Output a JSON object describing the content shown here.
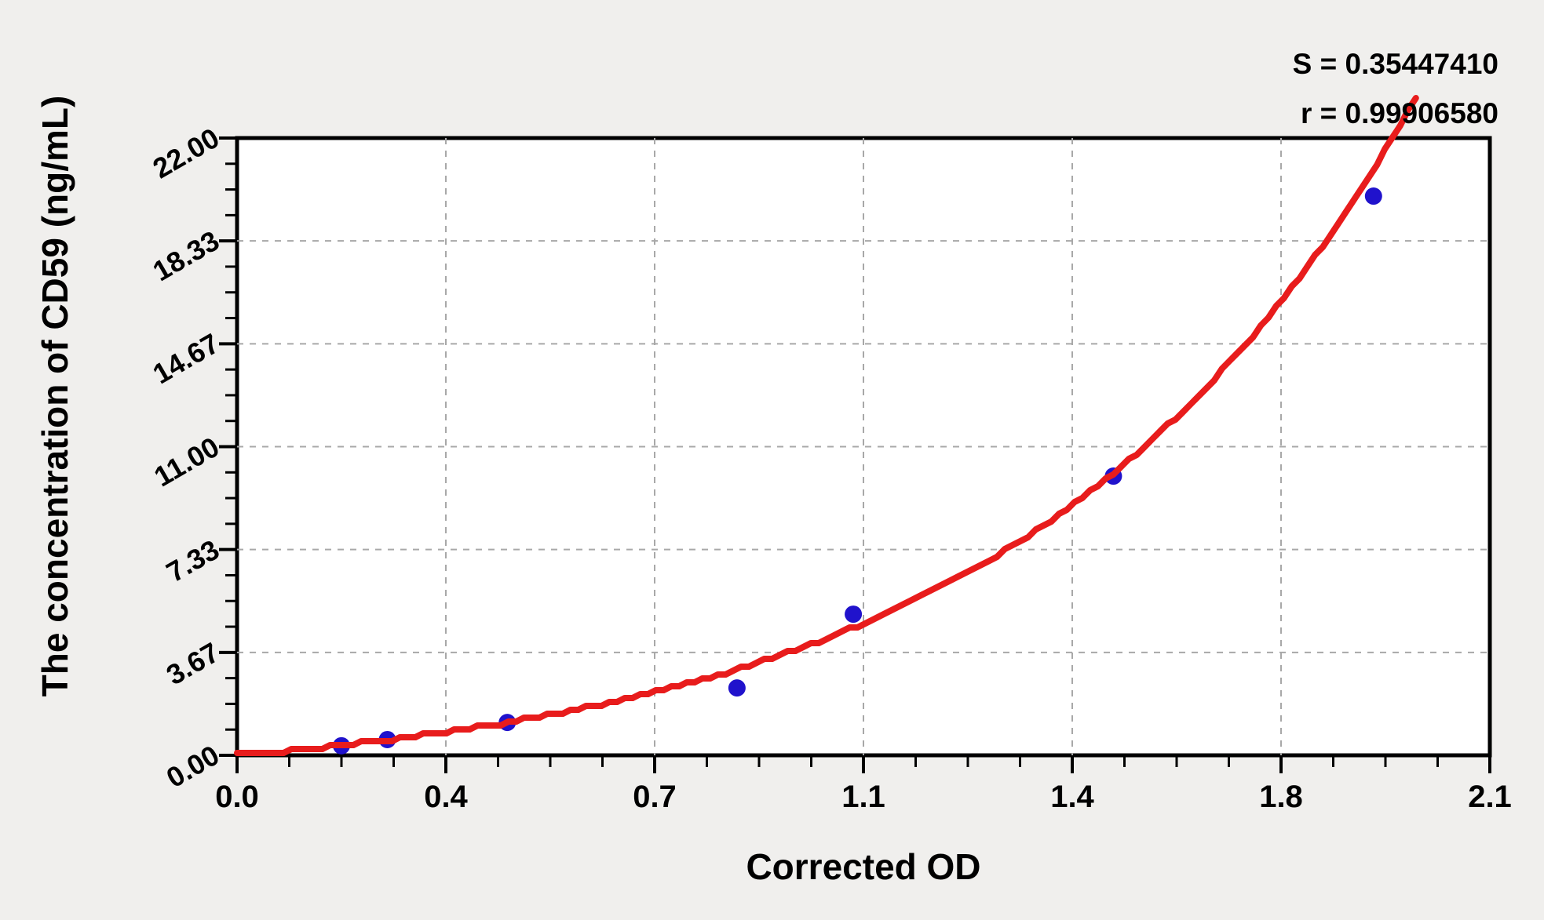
{
  "stats": {
    "s_label": "S = 0.35447410",
    "r_label": "r = 0.99906580"
  },
  "chart_data": {
    "type": "scatter",
    "title": "",
    "xlabel": "Corrected OD",
    "ylabel": "The concentration of CD59 (ng/mL)",
    "xlim": [
      0,
      2.1
    ],
    "ylim": [
      0,
      22
    ],
    "x_tick_labels": [
      "0.0",
      "0.4",
      "0.7",
      "1.1",
      "1.4",
      "1.8",
      "2.1"
    ],
    "y_tick_labels": [
      "0.00",
      "3.67",
      "7.33",
      "11.00",
      "14.67",
      "18.33",
      "22.00"
    ],
    "minor_ticks_per_interval": 3,
    "grid": "dashed gridlines at major ticks",
    "legend": "none",
    "points": [
      {
        "x": 0.175,
        "y": 0.34
      },
      {
        "x": 0.252,
        "y": 0.56
      },
      {
        "x": 0.453,
        "y": 1.17
      },
      {
        "x": 0.838,
        "y": 2.4
      },
      {
        "x": 1.033,
        "y": 5.03
      },
      {
        "x": 1.469,
        "y": 9.95
      },
      {
        "x": 1.905,
        "y": 19.93
      }
    ],
    "fit_curve": {
      "model": "y = a*(exp(k*x)-1)",
      "a": 1.15,
      "k": 1.55,
      "x_start": 0,
      "x_end": 1.978
    },
    "fit_stats": {
      "S": "0.35447410",
      "r": "0.99906580"
    },
    "colors": {
      "curve": "#e81c1c",
      "points": "#2012cc",
      "grid": "#a8a8a8",
      "axis": "#000000",
      "plot_bg": "#ffffff",
      "page_bg": "#f0efed"
    }
  }
}
